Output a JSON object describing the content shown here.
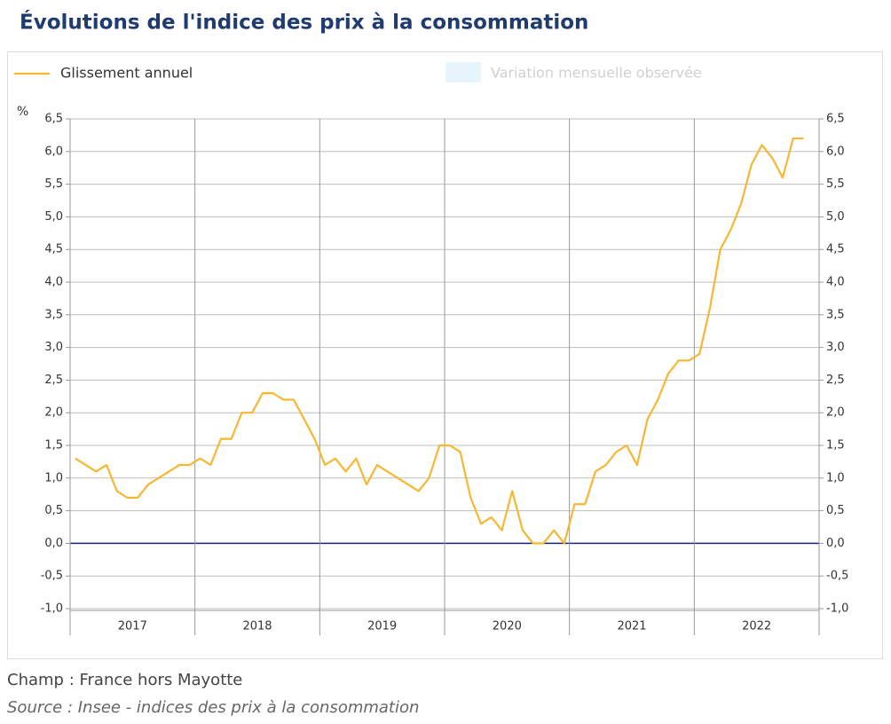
{
  "chart_data": {
    "type": "line",
    "title": "Évolutions de l'indice des prix à la consommation",
    "y_label": "%",
    "categories": [
      null,
      null,
      null,
      null,
      null,
      "2017",
      null,
      null,
      null,
      null,
      null,
      null,
      null,
      null,
      null,
      null,
      null,
      "2018",
      null,
      null,
      null,
      null,
      null,
      null,
      null,
      null,
      null,
      null,
      null,
      "2019",
      null,
      null,
      null,
      null,
      null,
      null,
      null,
      null,
      null,
      null,
      null,
      "2020",
      null,
      null,
      null,
      null,
      null,
      null,
      null,
      null,
      null,
      null,
      null,
      "2021",
      null,
      null,
      null,
      null,
      null,
      null,
      null,
      null,
      null,
      null,
      null,
      "2022",
      null,
      null,
      null,
      null,
      null
    ],
    "series": [
      {
        "name": "Glissement annuel",
        "color": "#f7b731",
        "values": [
          1.3,
          1.2,
          1.1,
          1.2,
          0.8,
          0.7,
          0.7,
          0.9,
          1.0,
          1.1,
          1.2,
          1.2,
          1.3,
          1.2,
          1.6,
          1.6,
          2.0,
          2.0,
          2.3,
          2.3,
          2.2,
          2.2,
          1.9,
          1.6,
          1.2,
          1.3,
          1.1,
          1.3,
          0.9,
          1.2,
          1.1,
          1.0,
          0.9,
          0.8,
          1.0,
          1.5,
          1.5,
          1.4,
          0.7,
          0.3,
          0.4,
          0.2,
          0.8,
          0.2,
          0.0,
          0.0,
          0.2,
          0.0,
          0.6,
          0.6,
          1.1,
          1.2,
          1.4,
          1.5,
          1.2,
          1.9,
          2.2,
          2.6,
          2.8,
          2.8,
          2.9,
          3.6,
          4.5,
          4.8,
          5.2,
          5.8,
          6.1,
          5.9,
          5.6,
          6.2,
          6.2
        ]
      }
    ],
    "inactive_legend": {
      "name": "Variation mensuelle observée",
      "color": "#e6f4fb"
    },
    "ylim": [
      -1,
      6.5
    ],
    "yticks": [
      {
        "value": -1,
        "label": "-1,0"
      },
      {
        "value": -0.5,
        "label": "-0,5"
      },
      {
        "value": 0,
        "label": "0,0"
      },
      {
        "value": 0.5,
        "label": "0,5"
      },
      {
        "value": 1,
        "label": "1,0"
      },
      {
        "value": 1.5,
        "label": "1,5"
      },
      {
        "value": 2,
        "label": "2,0"
      },
      {
        "value": 2.5,
        "label": "2,5"
      },
      {
        "value": 3,
        "label": "3,0"
      },
      {
        "value": 3.5,
        "label": "3,5"
      },
      {
        "value": 4,
        "label": "4,0"
      },
      {
        "value": 4.5,
        "label": "4,5"
      },
      {
        "value": 5,
        "label": "5,0"
      },
      {
        "value": 5.5,
        "label": "5,5"
      },
      {
        "value": 6,
        "label": "6,0"
      },
      {
        "value": 6.5,
        "label": "6,5"
      }
    ],
    "y2lim": [
      -1,
      6.5
    ],
    "y2ticks": [
      {
        "value": -1,
        "label": "-1,0"
      },
      {
        "value": -0.5,
        "label": "-0,5"
      },
      {
        "value": 0,
        "label": "0,0"
      },
      {
        "value": 0.5,
        "label": "0,5"
      },
      {
        "value": 1,
        "label": "1,0"
      },
      {
        "value": 1.5,
        "label": "1,5"
      },
      {
        "value": 2,
        "label": "2,0"
      },
      {
        "value": 2.5,
        "label": "2,5"
      },
      {
        "value": 3,
        "label": "3,0"
      },
      {
        "value": 3.5,
        "label": "3,5"
      },
      {
        "value": 4,
        "label": "4,0"
      },
      {
        "value": 4.5,
        "label": "4,5"
      },
      {
        "value": 5,
        "label": "5,0"
      },
      {
        "value": 5.5,
        "label": "5,5"
      },
      {
        "value": 6,
        "label": "6,0"
      },
      {
        "value": 6.5,
        "label": "6,5"
      }
    ],
    "grid": true,
    "zero_line_color": "#1a237e",
    "legend": "top-left",
    "notes": [
      "Champ : France hors Mayotte",
      "Source : Insee - indices des prix à la consommation"
    ]
  }
}
